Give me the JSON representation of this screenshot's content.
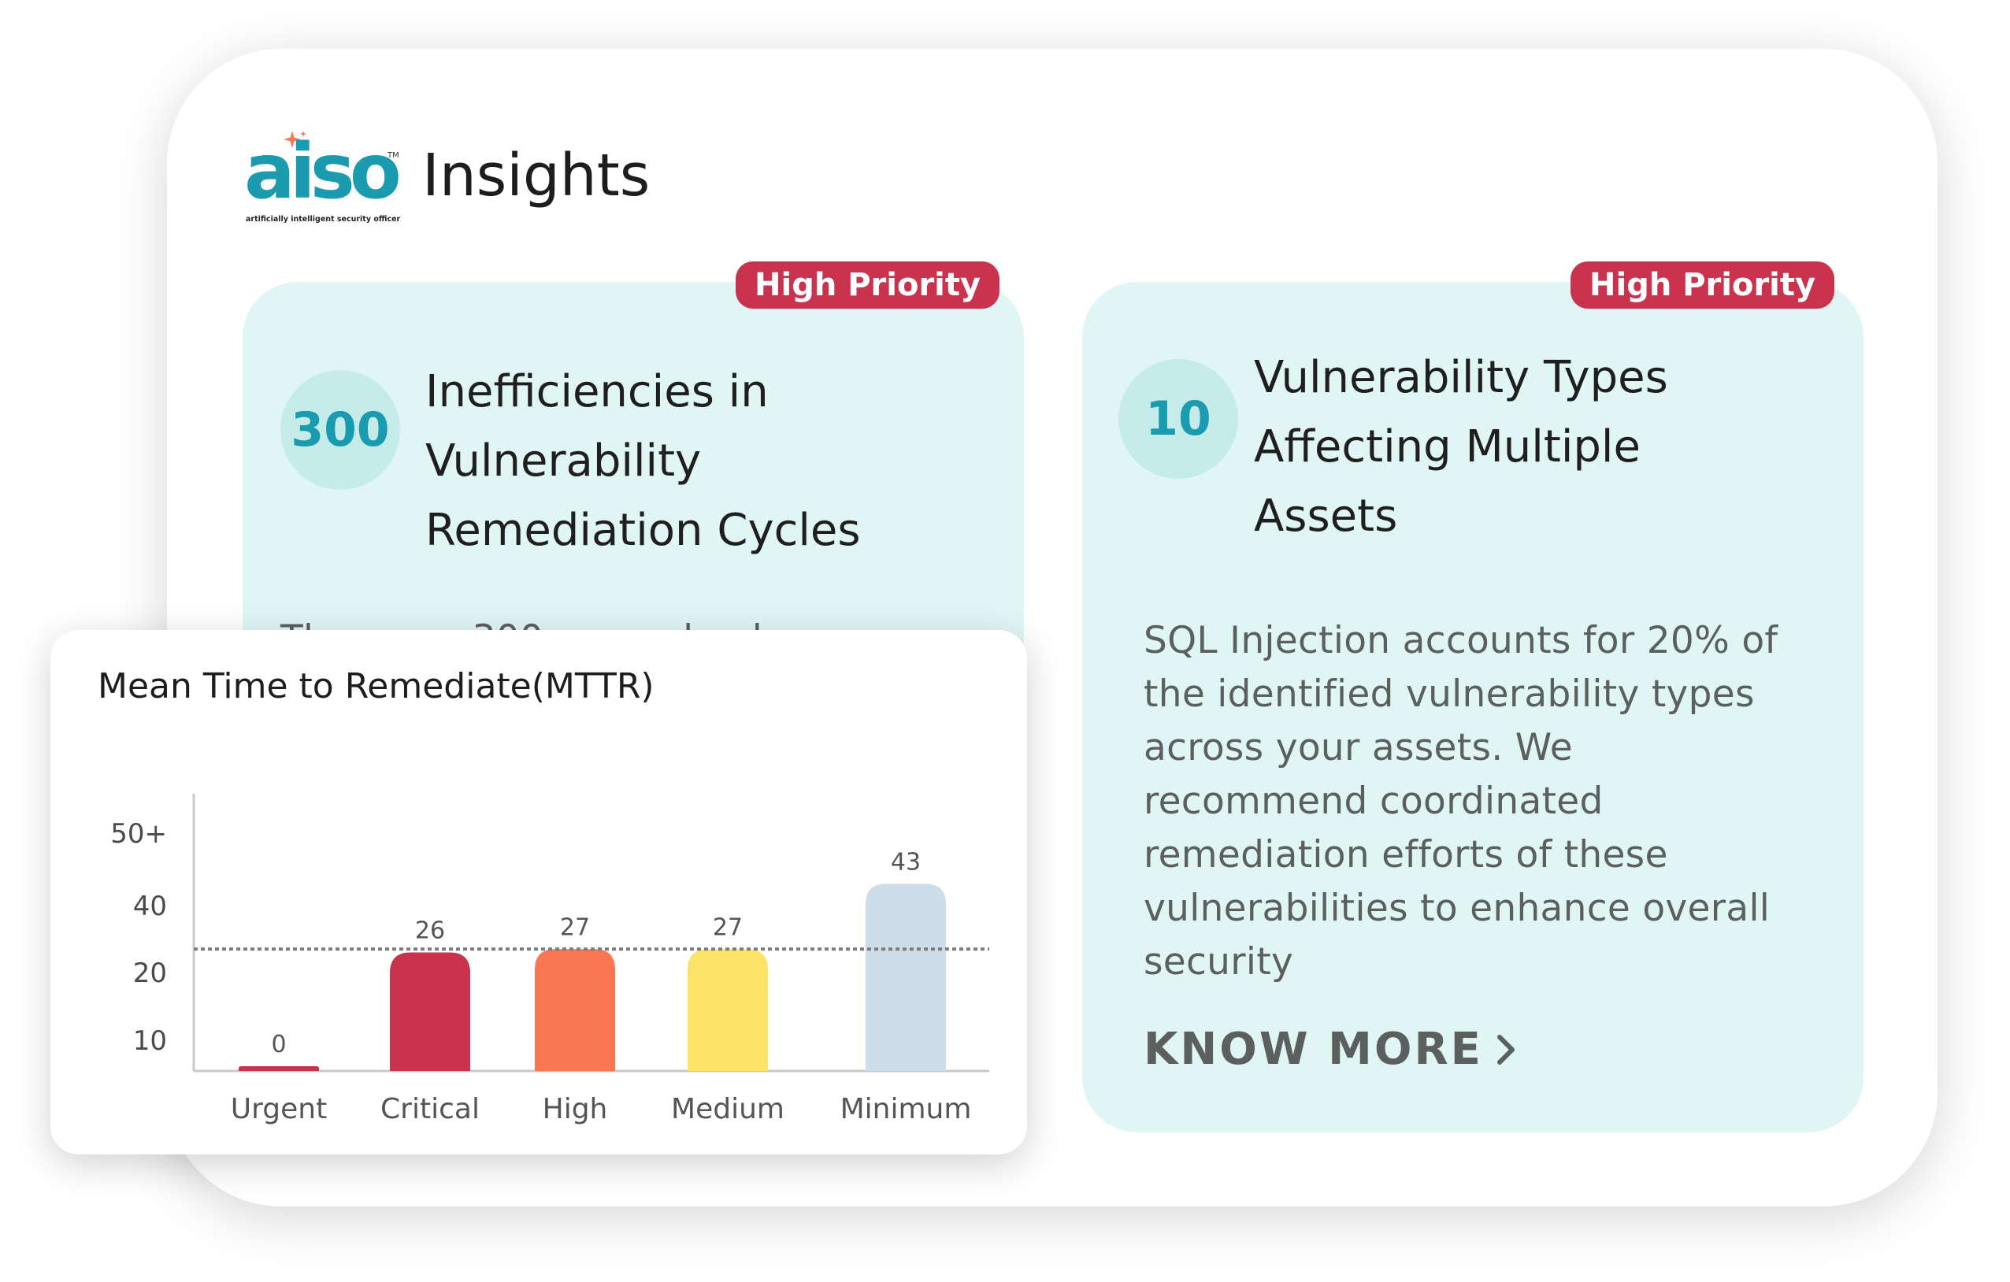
{
  "logo": {
    "wordmark": "aiso",
    "trademark": "TM",
    "tagline": "artificially intelligent security officer"
  },
  "header": {
    "title": "Insights"
  },
  "cards": [
    {
      "badge": "High Priority",
      "count": "300",
      "title_lines": [
        "Inefficiencies in",
        "Vulnerability",
        "Remediation Cycles"
      ],
      "desc_partial": "There are 300 unresolved"
    },
    {
      "badge": "High Priority",
      "count": "10",
      "title_lines": [
        "Vulnerability Types",
        "Affecting Multiple",
        "Assets"
      ],
      "desc_lines": [
        "SQL Injection accounts for 20% of",
        "the identified vulnerability types",
        "across your assets. We",
        "recommend coordinated",
        "remediation efforts of these",
        "vulnerabilities to enhance overall",
        "security"
      ],
      "cta": "KNOW MORE"
    }
  ],
  "colors": {
    "brand": "#1b9bb0",
    "card_bg": "#e0f6f5",
    "badge": "#c9334e",
    "text_muted": "#5b5f5d"
  },
  "chart_data": {
    "type": "bar",
    "title": "Mean Time to Remediate(MTTR)",
    "categories": [
      "Urgent",
      "Critical",
      "High",
      "Medium",
      "Minimum"
    ],
    "values": [
      0,
      26,
      27,
      27,
      43
    ],
    "value_labels": [
      "0",
      "26",
      "27",
      "27",
      "43"
    ],
    "y_ticks": [
      "10",
      "20",
      "40",
      "50+"
    ],
    "reference_line": 27,
    "grid": false,
    "bar_colors": [
      "#c9334e",
      "#c9334e",
      "#fb7653",
      "#fde467",
      "#cfdde9"
    ]
  }
}
